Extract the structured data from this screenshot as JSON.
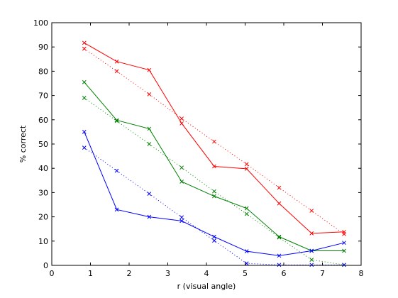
{
  "chart_data": {
    "type": "line",
    "title": "",
    "xlabel": "r (visual angle)",
    "ylabel": "% correct",
    "xlim": [
      0,
      8
    ],
    "ylim": [
      0,
      100
    ],
    "xticks": [
      0,
      1,
      2,
      3,
      4,
      5,
      6,
      7,
      8
    ],
    "yticks": [
      0,
      10,
      20,
      30,
      40,
      50,
      60,
      70,
      80,
      90,
      100
    ],
    "grid": false,
    "legend": "none",
    "x": [
      0.84,
      1.68,
      2.52,
      3.36,
      4.2,
      5.04,
      5.88,
      6.72,
      7.56
    ],
    "series": [
      {
        "color": "#ff0000",
        "linestyle": "solid",
        "marker": "x",
        "values": [
          91.7,
          84.0,
          80.5,
          58.5,
          40.8,
          39.8,
          25.5,
          13.2,
          13.8
        ]
      },
      {
        "color": "#ff0000",
        "linestyle": "dotted",
        "marker": "x",
        "values": [
          89.3,
          80.0,
          70.5,
          60.5,
          51.0,
          41.7,
          32.0,
          22.5,
          12.9
        ]
      },
      {
        "color": "#008000",
        "linestyle": "solid",
        "marker": "x",
        "values": [
          75.5,
          59.8,
          56.3,
          34.5,
          28.5,
          23.5,
          11.8,
          6.0,
          6.0
        ]
      },
      {
        "color": "#008000",
        "linestyle": "dotted",
        "marker": "x",
        "values": [
          69.0,
          59.5,
          50.0,
          40.3,
          30.5,
          21.2,
          11.5,
          2.3,
          0.2
        ]
      },
      {
        "color": "#0000ff",
        "linestyle": "solid",
        "marker": "x",
        "values": [
          55.0,
          23.0,
          20.0,
          18.3,
          11.8,
          5.8,
          4.0,
          6.0,
          9.3
        ]
      },
      {
        "color": "#0000ff",
        "linestyle": "dotted",
        "marker": "x",
        "values": [
          48.5,
          39.0,
          29.5,
          19.8,
          10.2,
          0.8,
          0.2,
          0.2,
          0.2
        ]
      }
    ]
  }
}
